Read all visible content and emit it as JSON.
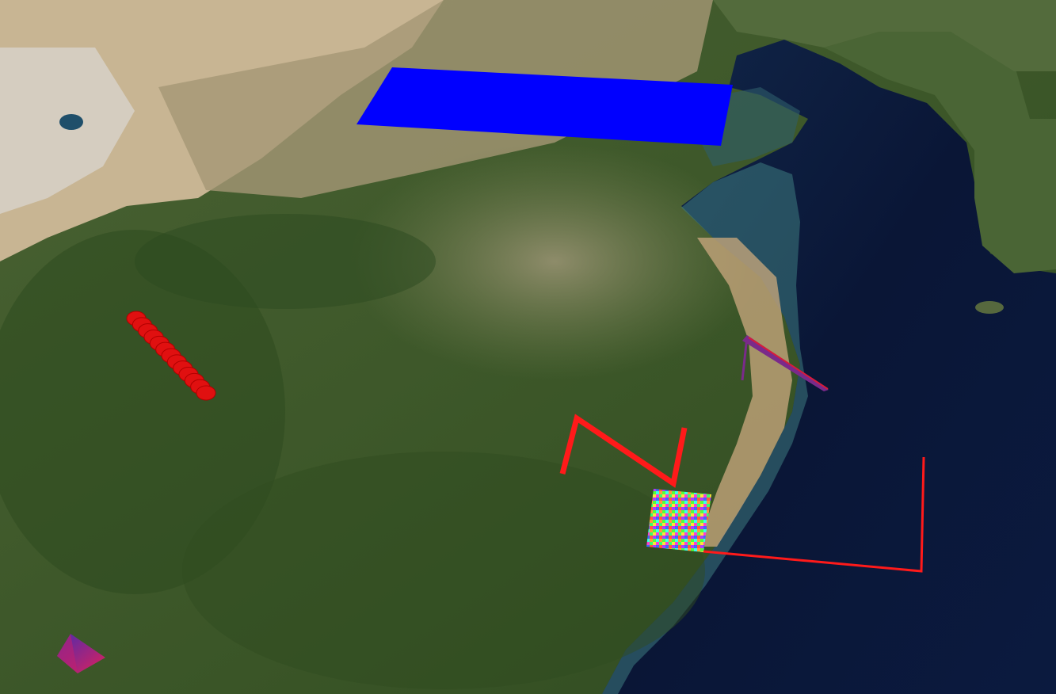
{
  "view": {
    "type": "3d-globe",
    "imagery": "satellite",
    "region": "East Asia"
  },
  "colors": {
    "land_green": "#3f5b2c",
    "land_dark": "#2f4a22",
    "plain_tan": "#8f8a66",
    "desert_sand": "#c6b391",
    "sea_deep": "#0a1636",
    "sea_mid": "#14294b",
    "coast_teal": "#3f7f82",
    "sediment": "#c2a27a",
    "blue_polygon": "#0000ff",
    "red_line": "#ff1a1a",
    "magenta": "#a0206a"
  },
  "overlays": [
    {
      "name": "blue-polygon",
      "kind": "extruded-polygon",
      "color": "#0000ff"
    },
    {
      "name": "red-circles-row",
      "kind": "circle-instances",
      "color": "#e01010",
      "count": 13
    },
    {
      "name": "red-zigzag-polyline",
      "kind": "polyline",
      "color": "#ff1a1a"
    },
    {
      "name": "textured-quad",
      "kind": "image-overlay",
      "texture": "multicolor-noise"
    },
    {
      "name": "red-thin-polyline",
      "kind": "polyline",
      "color": "#ff1a1a"
    },
    {
      "name": "purple-wall",
      "kind": "wall",
      "color": "#7a2a8a"
    },
    {
      "name": "purple-pyramid",
      "kind": "box-primitive",
      "color": "#a0206a"
    }
  ]
}
